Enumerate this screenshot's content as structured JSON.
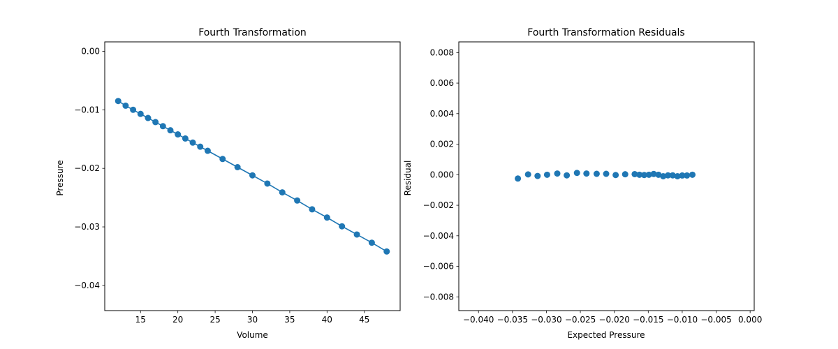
{
  "colors": {
    "series": "#1f77b4",
    "axis": "#000000",
    "background": "#ffffff"
  },
  "chart_data": [
    {
      "type": "line",
      "title": "Fourth Transformation",
      "xlabel": "Volume",
      "ylabel": "Pressure",
      "xlim": [
        10.2,
        49.8
      ],
      "ylim": [
        -0.0443,
        0.0016
      ],
      "xticks": [
        15,
        20,
        25,
        30,
        35,
        40,
        45
      ],
      "xtick_labels": [
        "15",
        "20",
        "25",
        "30",
        "35",
        "40",
        "45"
      ],
      "yticks": [
        0.0,
        -0.01,
        -0.02,
        -0.03,
        -0.04
      ],
      "ytick_labels": [
        "0.00",
        "−0.01",
        "−0.02",
        "−0.03",
        "−0.04"
      ],
      "grid": false,
      "series": [
        {
          "style": "line-with-markers",
          "x": [
            12,
            13,
            14,
            15,
            16,
            17,
            18,
            19,
            20,
            21,
            22,
            23,
            24,
            26,
            28,
            30,
            32,
            34,
            36,
            38,
            40,
            42,
            44,
            46,
            48
          ],
          "y": [
            -0.0085,
            -0.0093,
            -0.01,
            -0.0107,
            -0.0114,
            -0.0121,
            -0.0128,
            -0.0135,
            -0.0142,
            -0.0149,
            -0.0156,
            -0.0163,
            -0.017,
            -0.0184,
            -0.0198,
            -0.0212,
            -0.0226,
            -0.0241,
            -0.0255,
            -0.027,
            -0.0284,
            -0.0299,
            -0.0313,
            -0.0327,
            -0.0342
          ]
        }
      ]
    },
    {
      "type": "scatter",
      "title": "Fourth Transformation Residuals",
      "xlabel": "Expected Pressure",
      "ylabel": "Residual",
      "xlim": [
        -0.0429,
        0.0006
      ],
      "ylim": [
        -0.0089,
        0.0087
      ],
      "xticks": [
        -0.04,
        -0.035,
        -0.03,
        -0.025,
        -0.02,
        -0.015,
        -0.01,
        -0.005,
        0.0
      ],
      "xtick_labels": [
        "−0.040",
        "−0.035",
        "−0.030",
        "−0.025",
        "−0.020",
        "−0.015",
        "−0.010",
        "−0.005",
        "0.000"
      ],
      "yticks": [
        0.008,
        0.006,
        0.004,
        0.002,
        0.0,
        -0.002,
        -0.004,
        -0.006,
        -0.008
      ],
      "ytick_labels": [
        "0.008",
        "0.006",
        "0.004",
        "0.002",
        "0.000",
        "−0.002",
        "−0.004",
        "−0.006",
        "−0.008"
      ],
      "grid": false,
      "series": [
        {
          "style": "markers",
          "x": [
            -0.0342,
            -0.0327,
            -0.0313,
            -0.0299,
            -0.0284,
            -0.027,
            -0.0255,
            -0.0241,
            -0.0226,
            -0.0212,
            -0.0198,
            -0.0184,
            -0.017,
            -0.0163,
            -0.0156,
            -0.0149,
            -0.0142,
            -0.0135,
            -0.0128,
            -0.0121,
            -0.0114,
            -0.0107,
            -0.01,
            -0.0093,
            -0.0085
          ],
          "y": [
            -0.00025,
            2e-05,
            -8e-05,
            0.0,
            8e-05,
            -4e-05,
            0.00012,
            8e-05,
            6e-05,
            6e-05,
            -2e-05,
            3e-05,
            4e-05,
            0.0,
            -2e-05,
            0.0,
            5e-05,
            0.0,
            -0.0001,
            -4e-05,
            -4e-05,
            -0.0001,
            -5e-05,
            -5e-05,
            0.0
          ]
        }
      ]
    }
  ]
}
